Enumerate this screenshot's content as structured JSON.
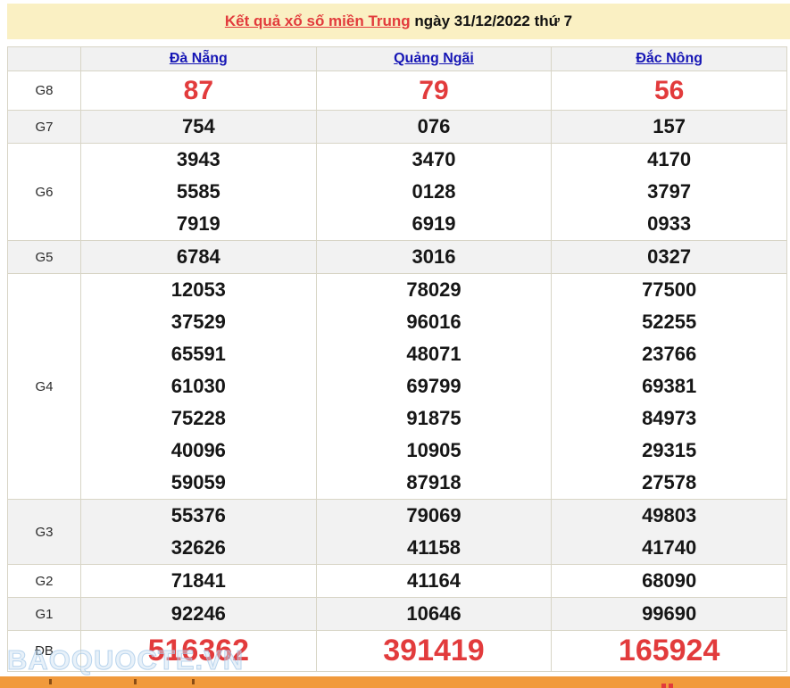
{
  "title": {
    "link": "Kết quả xổ số miền Trung",
    "rest": " ngày 31/12/2022 thứ 7"
  },
  "columns": [
    {
      "key": "da-nang",
      "label": "Đà Nẵng"
    },
    {
      "key": "quang-ngai",
      "label": "Quảng Ngãi"
    },
    {
      "key": "dac-nong",
      "label": "Đắc Nông"
    }
  ],
  "rows": [
    {
      "key": "g8",
      "label": "G8",
      "style": "red-large",
      "values": [
        [
          "87"
        ],
        [
          "79"
        ],
        [
          "56"
        ]
      ]
    },
    {
      "key": "g7",
      "label": "G7",
      "values": [
        [
          "754"
        ],
        [
          "076"
        ],
        [
          "157"
        ]
      ]
    },
    {
      "key": "g6",
      "label": "G6",
      "values": [
        [
          "3943",
          "5585",
          "7919"
        ],
        [
          "3470",
          "0128",
          "6919"
        ],
        [
          "4170",
          "3797",
          "0933"
        ]
      ]
    },
    {
      "key": "g5",
      "label": "G5",
      "values": [
        [
          "6784"
        ],
        [
          "3016"
        ],
        [
          "0327"
        ]
      ]
    },
    {
      "key": "g4",
      "label": "G4",
      "values": [
        [
          "12053",
          "37529",
          "65591",
          "61030",
          "75228",
          "40096",
          "59059"
        ],
        [
          "78029",
          "96016",
          "48071",
          "69799",
          "91875",
          "10905",
          "87918"
        ],
        [
          "77500",
          "52255",
          "23766",
          "69381",
          "84973",
          "29315",
          "27578"
        ]
      ]
    },
    {
      "key": "g3",
      "label": "G3",
      "values": [
        [
          "55376",
          "32626"
        ],
        [
          "79069",
          "41158"
        ],
        [
          "49803",
          "41740"
        ]
      ]
    },
    {
      "key": "g2",
      "label": "G2",
      "values": [
        [
          "71841"
        ],
        [
          "41164"
        ],
        [
          "68090"
        ]
      ]
    },
    {
      "key": "g1",
      "label": "G1",
      "values": [
        [
          "92246"
        ],
        [
          "10646"
        ],
        [
          "99690"
        ]
      ]
    },
    {
      "key": "db",
      "label": "ĐB",
      "style": "red-xlarge",
      "values": [
        [
          "516362"
        ],
        [
          "391419"
        ],
        [
          "165924"
        ]
      ]
    }
  ],
  "watermark": "BAOQUOCTE.VN",
  "colors": {
    "banner_bg": "#faf0c3",
    "link_blue": "#1515b5",
    "result_red": "#e23b3c",
    "row_shade": "#f2f2f2",
    "table_border": "#d8d5c6",
    "bottom_strip": "#f19a3c"
  }
}
